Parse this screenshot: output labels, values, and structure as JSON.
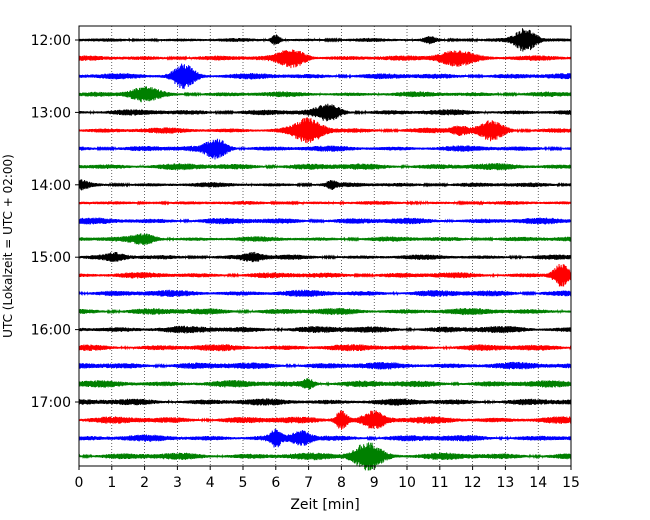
{
  "chart_data": {
    "type": "line",
    "title": "",
    "xlabel": "Zeit  [min]",
    "ylabel": "UTC (Lokalzeit = UTC + 02:00)",
    "xlim": [
      0,
      15
    ],
    "x_ticks": [
      "0",
      "1",
      "2",
      "3",
      "4",
      "5",
      "6",
      "7",
      "8",
      "9",
      "10",
      "11",
      "12",
      "13",
      "14",
      "15"
    ],
    "y_ticks": [
      "12:00",
      "13:00",
      "14:00",
      "15:00",
      "16:00",
      "17:00"
    ],
    "grid": "vertical dotted at every minute",
    "trace_interval_minutes": 15,
    "trace_count": 24,
    "color_cycle": [
      "#000000",
      "#ff0000",
      "#0000ff",
      "#008000"
    ],
    "traces": [
      {
        "start": "12:00",
        "color": "#000000",
        "noise": 0.22,
        "events": [
          {
            "t": 6.0,
            "amp": 0.7,
            "w": 0.15
          },
          {
            "t": 13.6,
            "amp": 1.5,
            "w": 0.35
          },
          {
            "t": 10.7,
            "amp": 0.4,
            "w": 0.2
          }
        ]
      },
      {
        "start": "12:15",
        "color": "#ff0000",
        "noise": 0.3,
        "events": [
          {
            "t": 6.5,
            "amp": 1.2,
            "w": 0.45
          },
          {
            "t": 11.5,
            "amp": 1.0,
            "w": 0.6
          }
        ]
      },
      {
        "start": "12:30",
        "color": "#0000ff",
        "noise": 0.35,
        "events": [
          {
            "t": 3.2,
            "amp": 1.5,
            "w": 0.35
          }
        ]
      },
      {
        "start": "12:45",
        "color": "#008000",
        "noise": 0.32,
        "events": [
          {
            "t": 2.0,
            "amp": 0.8,
            "w": 0.45
          }
        ]
      },
      {
        "start": "13:00",
        "color": "#000000",
        "noise": 0.35,
        "events": [
          {
            "t": 7.6,
            "amp": 0.9,
            "w": 0.4
          }
        ]
      },
      {
        "start": "13:15",
        "color": "#ff0000",
        "noise": 0.35,
        "events": [
          {
            "t": 7.0,
            "amp": 1.4,
            "w": 0.45
          },
          {
            "t": 12.6,
            "amp": 1.1,
            "w": 0.4
          },
          {
            "t": 11.6,
            "amp": 0.5,
            "w": 0.25
          }
        ]
      },
      {
        "start": "13:30",
        "color": "#0000ff",
        "noise": 0.35,
        "events": [
          {
            "t": 4.2,
            "amp": 1.2,
            "w": 0.35
          }
        ]
      },
      {
        "start": "13:45",
        "color": "#008000",
        "noise": 0.4,
        "events": []
      },
      {
        "start": "14:00",
        "color": "#000000",
        "noise": 0.28,
        "events": [
          {
            "t": 7.7,
            "amp": 0.45,
            "w": 0.15
          },
          {
            "t": 0.1,
            "amp": 0.45,
            "w": 0.2
          }
        ]
      },
      {
        "start": "14:15",
        "color": "#ff0000",
        "noise": 0.22,
        "events": []
      },
      {
        "start": "14:30",
        "color": "#0000ff",
        "noise": 0.38,
        "events": []
      },
      {
        "start": "14:45",
        "color": "#008000",
        "noise": 0.3,
        "events": [
          {
            "t": 2.0,
            "amp": 0.55,
            "w": 0.4
          }
        ]
      },
      {
        "start": "15:00",
        "color": "#000000",
        "noise": 0.3,
        "events": [
          {
            "t": 5.3,
            "amp": 0.5,
            "w": 0.35
          },
          {
            "t": 1.1,
            "amp": 0.4,
            "w": 0.3
          }
        ]
      },
      {
        "start": "15:15",
        "color": "#ff0000",
        "noise": 0.35,
        "events": [
          {
            "t": 14.7,
            "amp": 1.5,
            "w": 0.25
          }
        ]
      },
      {
        "start": "15:30",
        "color": "#0000ff",
        "noise": 0.4,
        "events": []
      },
      {
        "start": "15:45",
        "color": "#008000",
        "noise": 0.4,
        "events": []
      },
      {
        "start": "16:00",
        "color": "#000000",
        "noise": 0.42,
        "events": []
      },
      {
        "start": "16:15",
        "color": "#ff0000",
        "noise": 0.4,
        "events": []
      },
      {
        "start": "16:30",
        "color": "#0000ff",
        "noise": 0.42,
        "events": []
      },
      {
        "start": "16:45",
        "color": "#008000",
        "noise": 0.42,
        "events": [
          {
            "t": 7.0,
            "amp": 0.55,
            "w": 0.2
          }
        ]
      },
      {
        "start": "17:00",
        "color": "#000000",
        "noise": 0.4,
        "events": []
      },
      {
        "start": "17:15",
        "color": "#ff0000",
        "noise": 0.42,
        "events": [
          {
            "t": 8.0,
            "amp": 1.2,
            "w": 0.2
          },
          {
            "t": 9.0,
            "amp": 1.0,
            "w": 0.35
          }
        ]
      },
      {
        "start": "17:30",
        "color": "#0000ff",
        "noise": 0.4,
        "events": [
          {
            "t": 6.0,
            "amp": 1.0,
            "w": 0.15
          },
          {
            "t": 6.8,
            "amp": 0.8,
            "w": 0.3
          }
        ]
      },
      {
        "start": "17:45",
        "color": "#008000",
        "noise": 0.42,
        "events": [
          {
            "t": 8.8,
            "amp": 1.7,
            "w": 0.45
          }
        ]
      }
    ]
  }
}
